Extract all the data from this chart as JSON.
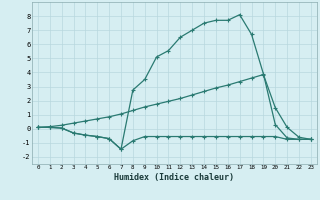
{
  "xlabel": "Humidex (Indice chaleur)",
  "background_color": "#d6eef2",
  "grid_color": "#b8d8de",
  "line_color": "#2a7a72",
  "xlim": [
    -0.5,
    23.5
  ],
  "ylim": [
    -2.5,
    9.0
  ],
  "xticks": [
    0,
    1,
    2,
    3,
    4,
    5,
    6,
    7,
    8,
    9,
    10,
    11,
    12,
    13,
    14,
    15,
    16,
    17,
    18,
    19,
    20,
    21,
    22,
    23
  ],
  "yticks": [
    -2,
    -1,
    0,
    1,
    2,
    3,
    4,
    5,
    6,
    7,
    8
  ],
  "line1_x": [
    0,
    1,
    2,
    3,
    4,
    5,
    6,
    7,
    8,
    9,
    10,
    11,
    12,
    13,
    14,
    15,
    16,
    17,
    18,
    19,
    20,
    21,
    22,
    23
  ],
  "line1_y": [
    0.1,
    0.1,
    0.05,
    -0.3,
    -0.45,
    -0.55,
    -0.7,
    -1.45,
    -0.85,
    -0.55,
    -0.55,
    -0.55,
    -0.55,
    -0.55,
    -0.55,
    -0.55,
    -0.55,
    -0.55,
    -0.55,
    -0.55,
    -0.55,
    -0.75,
    -0.75,
    -0.75
  ],
  "line2_x": [
    0,
    1,
    2,
    3,
    4,
    5,
    6,
    7,
    8,
    9,
    10,
    11,
    12,
    13,
    14,
    15,
    16,
    17,
    18,
    19,
    20,
    21,
    22,
    23
  ],
  "line2_y": [
    0.1,
    0.15,
    0.25,
    0.4,
    0.55,
    0.7,
    0.85,
    1.05,
    1.3,
    1.55,
    1.75,
    1.95,
    2.15,
    2.4,
    2.65,
    2.9,
    3.1,
    3.35,
    3.6,
    3.85,
    1.5,
    0.1,
    -0.6,
    -0.75
  ],
  "line3_x": [
    0,
    1,
    2,
    3,
    4,
    5,
    6,
    7,
    8,
    9,
    10,
    11,
    12,
    13,
    14,
    15,
    16,
    17,
    18,
    19,
    20,
    21,
    22,
    23
  ],
  "line3_y": [
    0.1,
    0.1,
    0.05,
    -0.3,
    -0.45,
    -0.55,
    -0.7,
    -1.45,
    2.75,
    3.5,
    5.1,
    5.55,
    6.5,
    7.0,
    7.5,
    7.7,
    7.7,
    8.1,
    6.7,
    3.9,
    0.3,
    -0.65,
    -0.75,
    -0.75
  ]
}
